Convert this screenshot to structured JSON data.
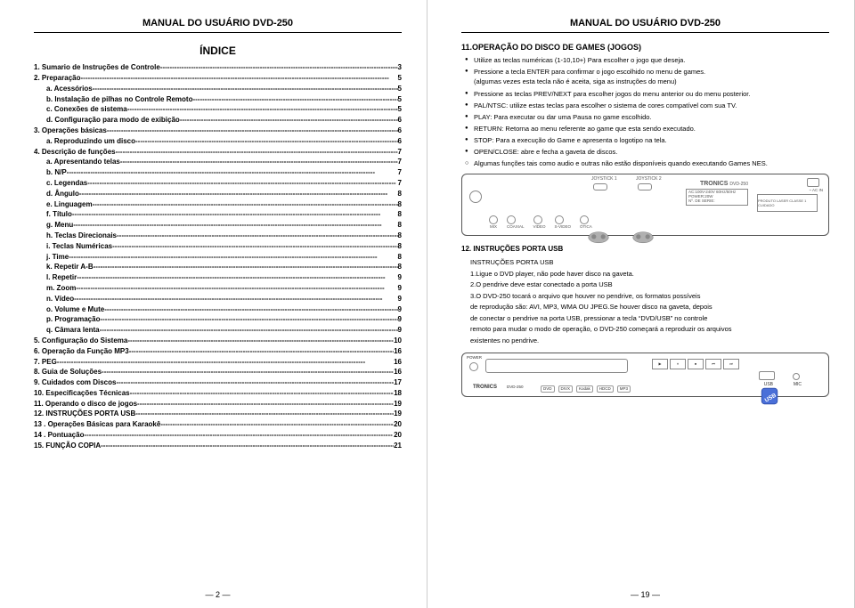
{
  "header": "MANUAL DO USUÁRIO DVD-250",
  "left": {
    "indice_title": "ÍNDICE",
    "toc": [
      {
        "n": "1.",
        "label": "Sumario de Instruções de Controle",
        "page": "3",
        "indent": false
      },
      {
        "n": "2.",
        "label": "Preparação",
        "page": "5",
        "indent": false
      },
      {
        "n": "a.",
        "label": "Acessórios",
        "page": "5",
        "indent": true
      },
      {
        "n": "b.",
        "label": "Instalação de pilhas no Controle Remoto",
        "page": "5",
        "indent": true
      },
      {
        "n": "c.",
        "label": "Conexões de sistema",
        "page": "5",
        "indent": true
      },
      {
        "n": "d.",
        "label": "Configuração para modo de exibição",
        "page": "6",
        "indent": true
      },
      {
        "n": "3.",
        "label": "Operações básicas",
        "page": "6",
        "indent": false
      },
      {
        "n": "a.",
        "label": "Reproduzindo um disco",
        "page": "6",
        "indent": true
      },
      {
        "n": "4.",
        "label": "Descrição de funções",
        "page": "7",
        "indent": false
      },
      {
        "n": "a.",
        "label": "Apresentando telas",
        "page": "7",
        "indent": true
      },
      {
        "n": "b.",
        "label": "N/P",
        "page": "7",
        "indent": true
      },
      {
        "n": "c.",
        "label": "Legendas",
        "page": "7",
        "indent": true
      },
      {
        "n": "d.",
        "label": "Ângulo",
        "page": "8",
        "indent": true
      },
      {
        "n": "e.",
        "label": "Linguagem",
        "page": "8",
        "indent": true
      },
      {
        "n": "f.",
        "label": "Título",
        "page": "8",
        "indent": true
      },
      {
        "n": "g.",
        "label": "Menu",
        "page": "8",
        "indent": true
      },
      {
        "n": "h.",
        "label": "Teclas Direcionais",
        "page": "8",
        "indent": true
      },
      {
        "n": "i.",
        "label": "Teclas Numéricas",
        "page": "8",
        "indent": true
      },
      {
        "n": "j.",
        "label": "Time",
        "page": "8",
        "indent": true
      },
      {
        "n": "k.",
        "label": "Repetir A-B",
        "page": "8",
        "indent": true
      },
      {
        "n": "l.",
        "label": "Repetir",
        "page": "9",
        "indent": true
      },
      {
        "n": "m.",
        "label": "Zoom",
        "page": "9",
        "indent": true
      },
      {
        "n": "n.",
        "label": "Vídeo",
        "page": "9",
        "indent": true
      },
      {
        "n": "o.",
        "label": "Volume e Mute",
        "page": "9",
        "indent": true
      },
      {
        "n": "p.",
        "label": "Programação",
        "page": "9",
        "indent": true
      },
      {
        "n": "q.",
        "label": "Câmara lenta",
        "page": "9",
        "indent": true
      },
      {
        "n": "5.",
        "label": "Configuração do Sistema",
        "page": "10",
        "indent": false
      },
      {
        "n": "6.",
        "label": "Operação da Função MP3",
        "page": "16",
        "indent": false
      },
      {
        "n": "7.",
        "label": "PEG",
        "page": "16",
        "indent": false
      },
      {
        "n": "8.",
        "label": "Guia de Soluções",
        "page": "16",
        "indent": false
      },
      {
        "n": "9.",
        "label": "Cuidados com Discos",
        "page": "17",
        "indent": false
      },
      {
        "n": "10.",
        "label": "  Especificações Técnicas",
        "page": "18",
        "indent": false
      },
      {
        "n": "11.",
        "label": "  Operando o disco de jogos",
        "page": "19",
        "indent": false
      },
      {
        "n": "12.",
        "label": "INSTRUÇÕES PORTA USB",
        "page": "19",
        "indent": false
      },
      {
        "n": "13 .",
        "label": "Operações Básicas para Karaokê",
        "page": "20",
        "indent": false
      },
      {
        "n": "14 .",
        "label": "Pontuação",
        "page": "20",
        "indent": false
      },
      {
        "n": "15.",
        "label": "FUNÇÃO COPIA",
        "page": "21",
        "indent": false
      }
    ],
    "footer": "2"
  },
  "right": {
    "sec11_title": "11.OPERAÇÃO DO DISCO DE GAMES (JOGOS)",
    "bullets": [
      {
        "text": "Utilize as teclas numéricas (1-10,10+) Para escolher o jogo que deseja.",
        "type": "dot"
      },
      {
        "text": "Pressione a tecla ENTER para confirmar o jogo escolhido no menu de games.",
        "type": "dot"
      },
      {
        "text": "(algumas vezes esta tecla não é aceita, siga as instruções do menu)",
        "type": "none"
      },
      {
        "text": "Pressione as teclas PREV/NEXT para escolher jogos do menu anterior ou do menu posterior.",
        "type": "dot"
      },
      {
        "text": "PAL/NTSC: utilize estas teclas para escolher o sistema de cores compatível com sua TV.",
        "type": "dot"
      },
      {
        "text": "PLAY: Para executar ou dar uma Pausa no game escolhido.",
        "type": "dot"
      },
      {
        "text": "RETURN: Retorna ao menu referente ao game que esta sendo executado.",
        "type": "dot"
      },
      {
        "text": "STOP: Para a execução do Game e apresenta o logotipo na tela.",
        "type": "dot"
      },
      {
        "text": "OPEN/CLOSE: abre e fecha a gaveta de discos.",
        "type": "dot"
      },
      {
        "text": "Algumas funções tais como audio e outras não estão disponíveis quando executando Games NES.",
        "type": "circle"
      }
    ],
    "diagram": {
      "brand": "TRONICS",
      "model": "DVD-250",
      "ac": "AC:100V-240V 60Hz/50Hz",
      "power": "POWER:20W",
      "serie": "Nº. DE SERIE:",
      "warn": "PRODUTO LASER CLASSE 1  CUIDADO",
      "joy1": "JOYSTICK 1",
      "joy2": "JOYSTICK 2",
      "ports": [
        "MIX",
        "COAXIAL",
        "VIDEO",
        "S-VIDEO",
        "ÓTICA"
      ],
      "acin": "~ AC IN"
    },
    "sec12_title": "12. INSTRUÇÕES PORTA USB",
    "usb_heading": "INSTRUÇÕES PORTA USB",
    "usb_lines": [
      "1.Ligue o DVD player, não pode haver disco na gaveta.",
      "2.O pendrive deve estar conectado a porta USB",
      "3.O DVD-250 tocará o arquivo que houver no pendrive, os formatos possíveis",
      "   de reprodução são: AVI, MP3, WMA OU JPEG.Se houver disco na gaveta, depois",
      "   de conectar o pendrive na porta USB, pressionar a tecla “DVD/USB” no controle",
      "   remoto para mudar o modo de operação, o DVD-250 começará a reproduzir os arquivos",
      "   existentes no pendrive."
    ],
    "front": {
      "brand": "TRONICS",
      "model": "DVD-250",
      "logos": [
        "DVD",
        "DIVX",
        "Kodak",
        "HDCD",
        "MP3"
      ],
      "btns": [
        "▶",
        "⏸",
        "⏹",
        "⏮",
        "⏭"
      ],
      "usb_label": "USB",
      "mic_label": "MIC",
      "pwr_label": "POWER"
    },
    "footer": "19"
  }
}
